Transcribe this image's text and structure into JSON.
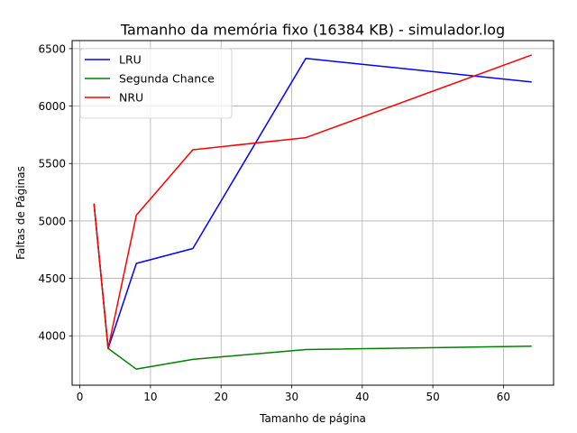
{
  "chart_data": {
    "type": "line",
    "title": "Tamanho da memória fixo (16384 KB) - simulador.log",
    "xlabel": "Tamanho de página",
    "ylabel": "Faltas de Páginas",
    "xlim": [
      -1.1,
      67.1
    ],
    "ylim": [
      3570,
      6570
    ],
    "x_ticks": [
      0,
      10,
      20,
      30,
      40,
      50,
      60
    ],
    "y_ticks": [
      4000,
      4500,
      5000,
      5500,
      6000,
      6500
    ],
    "grid": true,
    "legend_position": "top-left",
    "x": [
      2,
      4,
      8,
      16,
      32,
      64
    ],
    "series": [
      {
        "name": "LRU",
        "color": "#0000ff",
        "values": [
          5150,
          3890,
          4630,
          4760,
          6415,
          6210
        ]
      },
      {
        "name": "Segunda Chance",
        "color": "#008000",
        "values": [
          5150,
          3890,
          3710,
          3795,
          3880,
          3910
        ]
      },
      {
        "name": "NRU",
        "color": "#ff0000",
        "values": [
          5150,
          3890,
          5050,
          5620,
          5725,
          6445
        ]
      }
    ]
  }
}
